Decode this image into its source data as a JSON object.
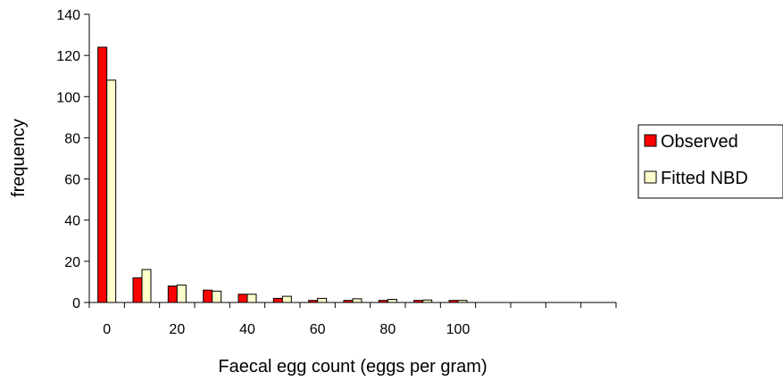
{
  "chart_data": {
    "type": "bar",
    "title": "",
    "xlabel": "Faecal egg count (eggs per gram)",
    "ylabel": "frequency",
    "ylim": [
      0,
      140
    ],
    "yticks": [
      "0",
      "20",
      "40",
      "60",
      "80",
      "100",
      "120",
      "140"
    ],
    "categories": [
      0,
      10,
      20,
      30,
      40,
      50,
      60,
      70,
      80,
      90,
      100,
      110,
      120,
      130,
      140
    ],
    "xtick_labels": [
      "0",
      "",
      "20",
      "",
      "40",
      "",
      "60",
      "",
      "80",
      "",
      "100",
      "",
      "",
      "",
      ""
    ],
    "series": [
      {
        "name": "Observed",
        "color": "#ff0000",
        "values": [
          124,
          12,
          8,
          6,
          4,
          2,
          1,
          1,
          1,
          1,
          1,
          0,
          0,
          0,
          0
        ]
      },
      {
        "name": "Fitted NBD",
        "color": "#ffffcc",
        "values": [
          108,
          16,
          8.5,
          5.5,
          4,
          3,
          2,
          1.8,
          1.5,
          1.2,
          1,
          0,
          0,
          0,
          0
        ]
      }
    ],
    "legend_position": "right",
    "grid": false
  }
}
